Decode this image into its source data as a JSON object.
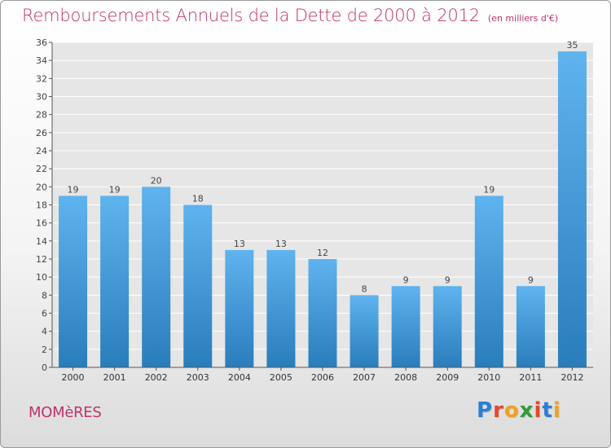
{
  "title": "Remboursements Annuels de la Dette de 2000 à 2012",
  "unit_note": "(en milliers d'€)",
  "commune": "MOMèRES",
  "logo": {
    "text": "Proxiti",
    "letters": [
      "P",
      "r",
      "o",
      "x",
      "i",
      "t",
      "i"
    ],
    "colors": [
      "#2a7fd4",
      "#e04a2b",
      "#f0a21c",
      "#2e9d3a",
      "#e04a2b",
      "#2a7fd4",
      "#f0a21c"
    ]
  },
  "colors": {
    "title": "#c0326e",
    "bar_light": "#5aaeea",
    "bar_dark": "#2b7fbd",
    "axis": "#555555",
    "grid": "#ffffff"
  },
  "chart_data": {
    "type": "bar",
    "title": "Remboursements Annuels de la Dette de 2000 à 2012",
    "subtitle": "(en milliers d'€)",
    "categories": [
      "2000",
      "2001",
      "2002",
      "2003",
      "2004",
      "2005",
      "2006",
      "2007",
      "2008",
      "2009",
      "2010",
      "2011",
      "2012"
    ],
    "values": [
      19,
      19,
      20,
      18,
      13,
      13,
      12,
      8,
      9,
      9,
      19,
      9,
      35
    ],
    "xlabel": "",
    "ylabel": "",
    "ylim": [
      0,
      36
    ],
    "yticks": [
      0,
      2,
      4,
      6,
      8,
      10,
      12,
      14,
      16,
      18,
      20,
      22,
      24,
      26,
      28,
      30,
      32,
      34,
      36
    ],
    "grid": true,
    "data_labels": true
  }
}
